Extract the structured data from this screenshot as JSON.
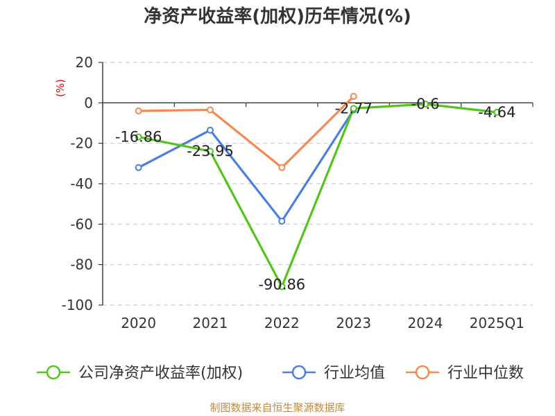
{
  "chart_data": {
    "type": "line",
    "title": "净资产收益率(加权)历年情况(%)",
    "unit_label": "(%)",
    "categories": [
      "2020",
      "2021",
      "2022",
      "2023",
      "2024",
      "2025Q1"
    ],
    "ylim": [
      -100,
      20
    ],
    "yticks": [
      20,
      0,
      -20,
      -40,
      -60,
      -80,
      -100
    ],
    "ytick_labels": [
      "20",
      "0",
      "-20",
      "-40",
      "-60",
      "-80",
      "-100"
    ],
    "grid": true,
    "legend_position": "bottom",
    "series": [
      {
        "name": "公司净资产收益率(加权)",
        "color": "#52c41a",
        "values": [
          -16.86,
          -23.95,
          -90.86,
          -2.77,
          -0.6,
          -4.64
        ],
        "labels": [
          "-16.86",
          "-23.95",
          "-90.86",
          "-2.77",
          "-0.6",
          "-4.64"
        ]
      },
      {
        "name": "行业均值",
        "color": "#4a7fe0",
        "values": [
          -32.0,
          -13.5,
          -58.5,
          -3.5,
          null,
          null
        ]
      },
      {
        "name": "行业中位数",
        "color": "#f5884f",
        "values": [
          -4.0,
          -3.5,
          -32.0,
          3.2,
          null,
          null
        ]
      }
    ]
  },
  "source": "制图数据来自恒生聚源数据库"
}
